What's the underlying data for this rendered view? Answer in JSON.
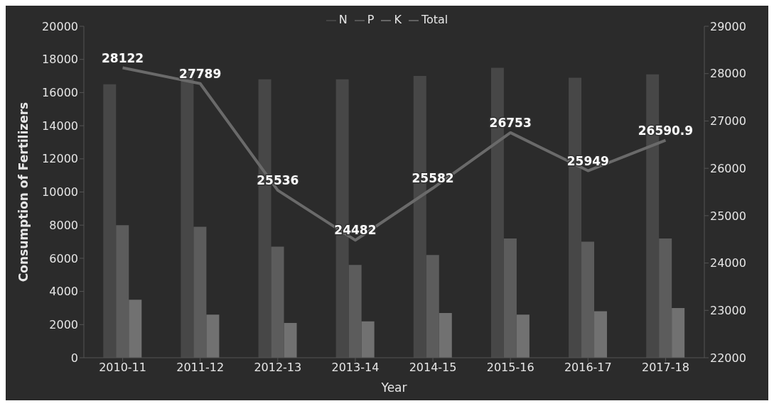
{
  "chart_data": {
    "type": "bar",
    "xlabel": "Year",
    "ylabel": "Consumption of  Fertilizers",
    "categories": [
      "2010-11",
      "2011-12",
      "2012-13",
      "2013-14",
      "2014-15",
      "2015-16",
      "2016-17",
      "2017-18"
    ],
    "series": [
      {
        "name": "N",
        "color": "#474747",
        "values": [
          16500,
          17300,
          16800,
          16800,
          17000,
          17500,
          16900,
          17100
        ]
      },
      {
        "name": "P",
        "color": "#5c5c5c",
        "values": [
          8000,
          7900,
          6700,
          5600,
          6200,
          7200,
          7000,
          7200
        ]
      },
      {
        "name": "K",
        "color": "#717171",
        "values": [
          3500,
          2600,
          2100,
          2200,
          2700,
          2600,
          2800,
          3000
        ]
      },
      {
        "name": "Total",
        "type": "line",
        "axis": "y2",
        "color": "#6a6a6a",
        "values": [
          28122,
          27789,
          25536,
          24482,
          25582,
          26753,
          25949,
          26590.9
        ],
        "value_labels": [
          "28122",
          "27789",
          "25536",
          "24482",
          "25582",
          "26753",
          "25949",
          "26590.9"
        ]
      }
    ],
    "ylim": [
      0,
      20000
    ],
    "yticks": [
      0,
      2000,
      4000,
      6000,
      8000,
      10000,
      12000,
      14000,
      16000,
      18000,
      20000
    ],
    "y2lim": [
      22000,
      29000
    ],
    "y2ticks": [
      22000,
      23000,
      24000,
      25000,
      26000,
      27000,
      28000,
      29000
    ],
    "legend": "top",
    "grid": false,
    "marker": "none"
  }
}
